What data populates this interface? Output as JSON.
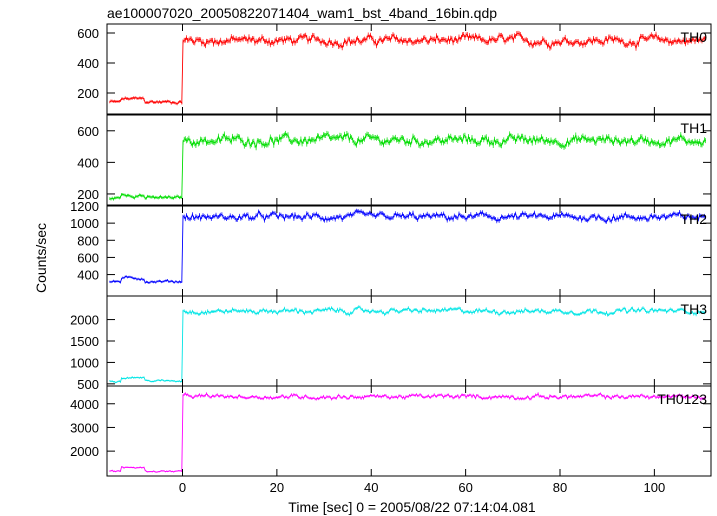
{
  "chart_data": {
    "type": "line",
    "title": "ae100007020_20050822071404_wam1_bst_4band_16bin.qdp",
    "xlabel": "Time [sec] 0 = 2005/08/22 07:14:04.081",
    "ylabel": "Counts/sec",
    "xlim": [
      -16,
      112
    ],
    "x_ticks": [
      0,
      20,
      40,
      60,
      80,
      100
    ],
    "x_tick_labels": [
      "0",
      "20",
      "40",
      "60",
      "80",
      "100"
    ],
    "burst_onset_x": 0,
    "grid": false,
    "series": [
      {
        "name": "TH0",
        "color": "#ff0000",
        "ylim": [
          60,
          660
        ],
        "y_ticks": [
          200,
          400,
          600
        ],
        "y_tick_labels": [
          "200",
          "400",
          "600"
        ],
        "pre_level": 140,
        "post_level": 550,
        "noise": 35
      },
      {
        "name": "TH1",
        "color": "#00dd00",
        "ylim": [
          130,
          700
        ],
        "y_ticks": [
          200,
          400,
          600
        ],
        "y_tick_labels": [
          "200",
          "400",
          "600"
        ],
        "pre_level": 175,
        "post_level": 540,
        "noise": 35
      },
      {
        "name": "TH2",
        "color": "#0000ff",
        "ylim": [
          150,
          1200
        ],
        "y_ticks": [
          400,
          600,
          800,
          1000,
          1200
        ],
        "y_tick_labels": [
          "400",
          "600",
          "800",
          "1000",
          "1200"
        ],
        "pre_level": 320,
        "post_level": 1070,
        "noise": 50
      },
      {
        "name": "TH3",
        "color": "#00e5e5",
        "ylim": [
          450,
          2550
        ],
        "y_ticks": [
          500,
          1000,
          1500,
          2000
        ],
        "y_tick_labels": [
          "500",
          "1000",
          "1500",
          "2000"
        ],
        "pre_level": 570,
        "post_level": 2200,
        "noise": 70
      },
      {
        "name": "TH0123",
        "color": "#ff00ff",
        "ylim": [
          950,
          4750
        ],
        "y_ticks": [
          2000,
          3000,
          4000
        ],
        "y_tick_labels": [
          "2000",
          "3000",
          "4000"
        ],
        "pre_level": 1150,
        "post_level": 4300,
        "noise": 110
      }
    ]
  }
}
